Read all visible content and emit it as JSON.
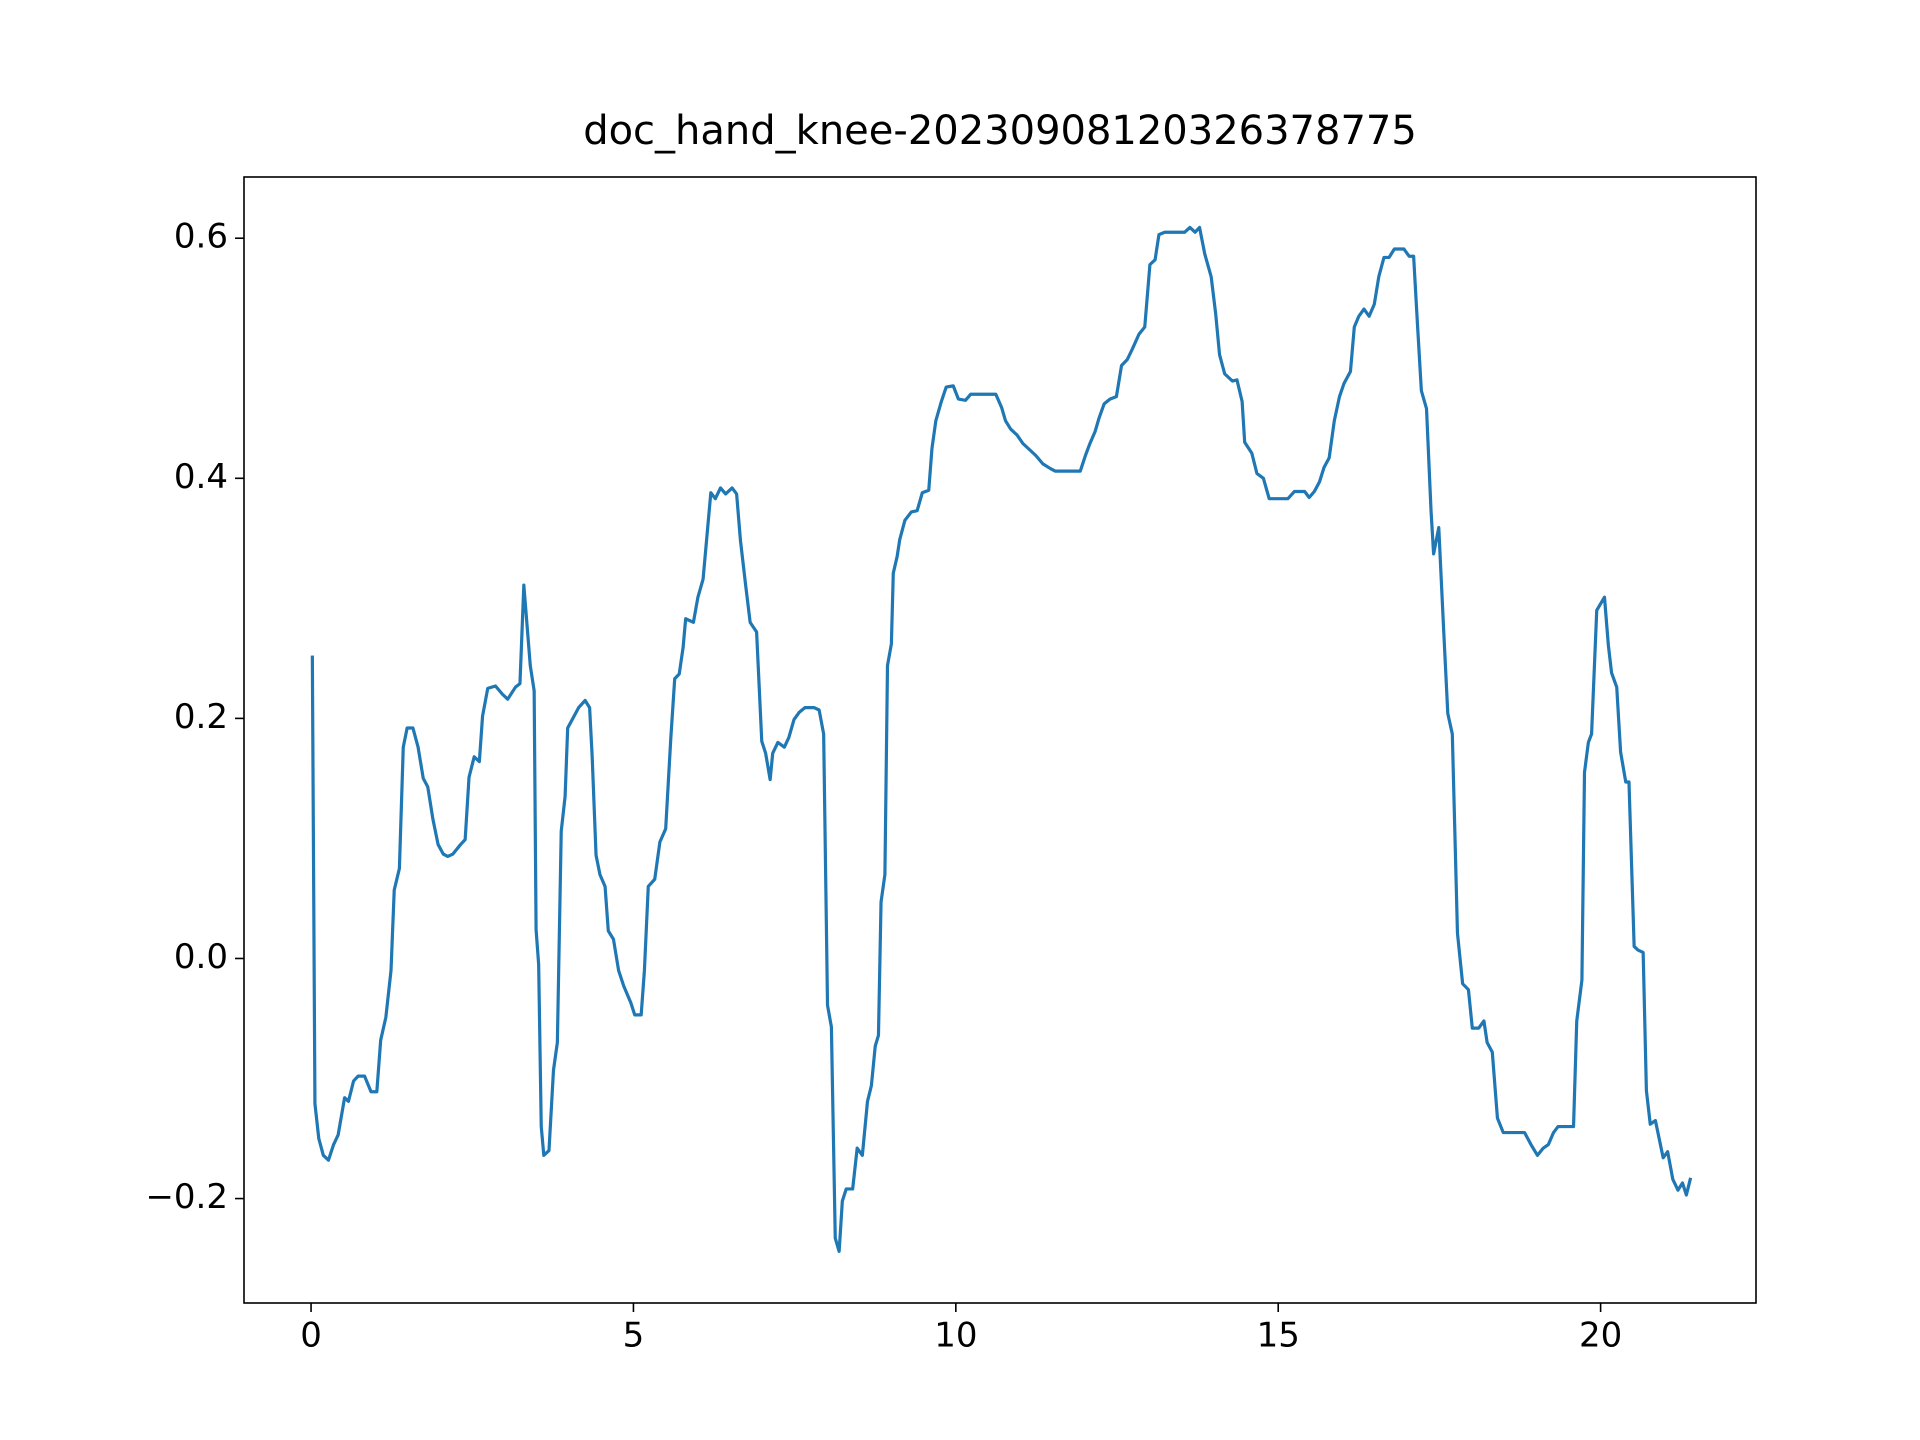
{
  "chart_data": {
    "type": "line",
    "title": "doc_hand_knee-20230908120326378775",
    "color": "#1f77b4",
    "xlim": [
      -1.04,
      22.41
    ],
    "ylim": [
      -0.287,
      0.651
    ],
    "xticks": [
      0,
      5,
      10,
      15,
      20
    ],
    "yticks": [
      {
        "value": -0.2,
        "label": "−0.2"
      },
      {
        "value": 0,
        "label": "0.0"
      },
      0.2,
      0.4,
      0.6
    ],
    "x": [
      0.02,
      0.06,
      0.12,
      0.19,
      0.27,
      0.35,
      0.42,
      0.52,
      0.58,
      0.66,
      0.73,
      0.83,
      0.93,
      1.02,
      1.08,
      1.16,
      1.24,
      1.29,
      1.37,
      1.43,
      1.49,
      1.58,
      1.66,
      1.74,
      1.81,
      1.89,
      1.97,
      2.05,
      2.12,
      2.2,
      2.32,
      2.39,
      2.45,
      2.53,
      2.61,
      2.66,
      2.74,
      2.86,
      2.97,
      3.05,
      3.17,
      3.24,
      3.3,
      3.4,
      3.46,
      3.49,
      3.53,
      3.57,
      3.61,
      3.69,
      3.76,
      3.82,
      3.88,
      3.94,
      3.98,
      4.05,
      4.15,
      4.25,
      4.32,
      4.36,
      4.42,
      4.48,
      4.56,
      4.61,
      4.69,
      4.77,
      4.85,
      4.96,
      5.02,
      5.12,
      5.17,
      5.23,
      5.33,
      5.41,
      5.5,
      5.58,
      5.64,
      5.71,
      5.77,
      5.81,
      5.93,
      6.0,
      6.08,
      6.14,
      6.2,
      6.27,
      6.35,
      6.43,
      6.53,
      6.6,
      6.66,
      6.74,
      6.81,
      6.91,
      6.99,
      7.05,
      7.12,
      7.16,
      7.24,
      7.34,
      7.41,
      7.49,
      7.57,
      7.66,
      7.8,
      7.88,
      7.95,
      8.01,
      8.07,
      8.13,
      8.19,
      8.24,
      8.3,
      8.4,
      8.47,
      8.55,
      8.63,
      8.69,
      8.75,
      8.8,
      8.84,
      8.9,
      8.94,
      9.0,
      9.03,
      9.09,
      9.13,
      9.21,
      9.31,
      9.4,
      9.48,
      9.58,
      9.63,
      9.69,
      9.77,
      9.85,
      9.96,
      10.04,
      10.15,
      10.23,
      10.62,
      10.71,
      10.77,
      10.85,
      10.95,
      11.04,
      11.14,
      11.24,
      11.35,
      11.47,
      11.54,
      11.93,
      12.01,
      12.08,
      12.16,
      12.22,
      12.3,
      12.39,
      12.49,
      12.57,
      12.66,
      12.74,
      12.84,
      12.93,
      13.01,
      13.09,
      13.15,
      13.24,
      13.55,
      13.63,
      13.71,
      13.78,
      13.86,
      13.96,
      14.03,
      14.09,
      14.17,
      14.29,
      14.36,
      14.44,
      14.48,
      14.59,
      14.67,
      14.77,
      14.86,
      15.15,
      15.25,
      15.41,
      15.48,
      15.56,
      15.64,
      15.71,
      15.79,
      15.87,
      15.95,
      16.02,
      16.12,
      16.18,
      16.25,
      16.33,
      16.41,
      16.49,
      16.56,
      16.64,
      16.72,
      16.8,
      16.95,
      17.03,
      17.1,
      17.16,
      17.22,
      17.3,
      17.37,
      17.41,
      17.49,
      17.57,
      17.63,
      17.7,
      17.78,
      17.86,
      17.95,
      18.01,
      18.11,
      18.19,
      18.24,
      18.32,
      18.4,
      18.49,
      18.82,
      18.92,
      19.02,
      19.11,
      19.19,
      19.27,
      19.34,
      19.58,
      19.63,
      19.71,
      19.75,
      19.81,
      19.86,
      19.94,
      20.06,
      20.12,
      20.17,
      20.25,
      20.31,
      20.39,
      20.44,
      20.52,
      20.58,
      20.66,
      20.71,
      20.77,
      20.85,
      20.97,
      21.04,
      21.12,
      21.2,
      21.27,
      21.33,
      21.39
    ],
    "values": [
      0.251,
      -0.121,
      -0.15,
      -0.164,
      -0.168,
      -0.155,
      -0.147,
      -0.116,
      -0.119,
      -0.102,
      -0.098,
      -0.098,
      -0.111,
      -0.111,
      -0.068,
      -0.049,
      -0.01,
      0.057,
      0.075,
      0.176,
      0.192,
      0.192,
      0.176,
      0.15,
      0.143,
      0.116,
      0.095,
      0.087,
      0.085,
      0.087,
      0.095,
      0.099,
      0.151,
      0.168,
      0.164,
      0.202,
      0.225,
      0.227,
      0.22,
      0.216,
      0.226,
      0.229,
      0.311,
      0.244,
      0.223,
      0.024,
      -0.005,
      -0.14,
      -0.164,
      -0.16,
      -0.093,
      -0.07,
      0.106,
      0.135,
      0.192,
      0.199,
      0.209,
      0.215,
      0.209,
      0.168,
      0.086,
      0.07,
      0.06,
      0.023,
      0.016,
      -0.01,
      -0.023,
      -0.037,
      -0.047,
      -0.047,
      -0.01,
      0.06,
      0.066,
      0.097,
      0.108,
      0.184,
      0.233,
      0.237,
      0.259,
      0.283,
      0.28,
      0.301,
      0.316,
      0.352,
      0.388,
      0.383,
      0.392,
      0.387,
      0.392,
      0.387,
      0.348,
      0.311,
      0.28,
      0.272,
      0.181,
      0.171,
      0.149,
      0.171,
      0.18,
      0.176,
      0.184,
      0.199,
      0.205,
      0.209,
      0.209,
      0.207,
      0.187,
      -0.039,
      -0.057,
      -0.233,
      -0.244,
      -0.202,
      -0.192,
      -0.192,
      -0.158,
      -0.164,
      -0.119,
      -0.106,
      -0.073,
      -0.064,
      0.047,
      0.07,
      0.244,
      0.262,
      0.321,
      0.335,
      0.349,
      0.365,
      0.372,
      0.373,
      0.388,
      0.39,
      0.425,
      0.448,
      0.463,
      0.476,
      0.477,
      0.466,
      0.465,
      0.47,
      0.47,
      0.459,
      0.448,
      0.441,
      0.436,
      0.429,
      0.424,
      0.419,
      0.412,
      0.408,
      0.406,
      0.406,
      0.419,
      0.429,
      0.439,
      0.45,
      0.462,
      0.466,
      0.468,
      0.494,
      0.499,
      0.508,
      0.52,
      0.526,
      0.578,
      0.582,
      0.603,
      0.605,
      0.605,
      0.609,
      0.605,
      0.609,
      0.587,
      0.568,
      0.537,
      0.503,
      0.487,
      0.481,
      0.482,
      0.464,
      0.43,
      0.421,
      0.404,
      0.4,
      0.383,
      0.383,
      0.389,
      0.389,
      0.384,
      0.389,
      0.397,
      0.409,
      0.417,
      0.448,
      0.468,
      0.479,
      0.489,
      0.526,
      0.535,
      0.541,
      0.535,
      0.545,
      0.568,
      0.584,
      0.584,
      0.591,
      0.591,
      0.585,
      0.585,
      0.528,
      0.473,
      0.458,
      0.373,
      0.337,
      0.359,
      0.269,
      0.204,
      0.187,
      0.021,
      -0.021,
      -0.026,
      -0.058,
      -0.058,
      -0.052,
      -0.07,
      -0.078,
      -0.133,
      -0.145,
      -0.145,
      -0.155,
      -0.164,
      -0.158,
      -0.155,
      -0.145,
      -0.14,
      -0.14,
      -0.052,
      -0.018,
      0.155,
      0.18,
      0.187,
      0.29,
      0.301,
      0.261,
      0.238,
      0.226,
      0.172,
      0.147,
      0.147,
      0.01,
      0.007,
      0.005,
      -0.11,
      -0.138,
      -0.135,
      -0.166,
      -0.161,
      -0.184,
      -0.193,
      -0.187,
      -0.197,
      -0.184
    ]
  }
}
